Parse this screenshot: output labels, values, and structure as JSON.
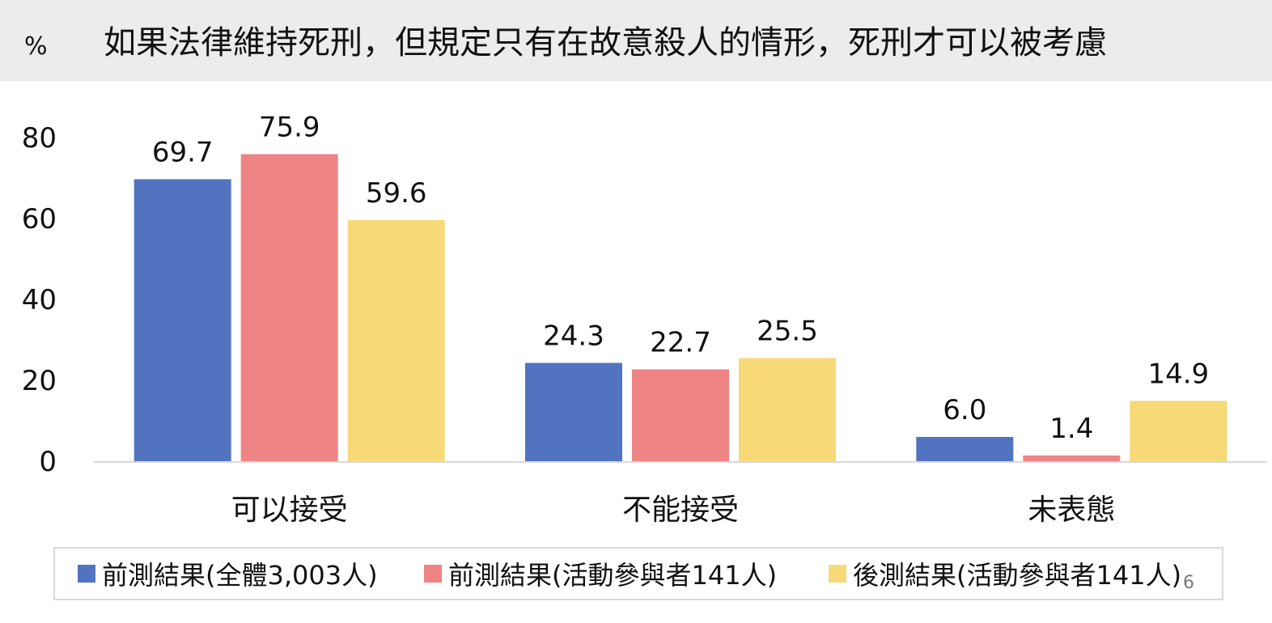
{
  "header": {
    "unit": "%",
    "title": "如果法律維持死刑，但規定只有在故意殺人的情形，死刑才可以被考慮"
  },
  "page_number": "6",
  "chart_data": {
    "type": "bar",
    "title": "如果法律維持死刑，但規定只有在故意殺人的情形，死刑才可以被考慮",
    "ylabel": "%",
    "ylim": [
      0,
      80
    ],
    "yticks": [
      0,
      20,
      40,
      60,
      80
    ],
    "grid": false,
    "legend_position": "bottom",
    "categories": [
      "可以接受",
      "不能接受",
      "未表態"
    ],
    "series": [
      {
        "name": "前測結果(全體3,003人)",
        "color": "#5274c0",
        "values": [
          69.7,
          24.3,
          6.0
        ],
        "labels": [
          "69.7",
          "24.3",
          "6.0"
        ]
      },
      {
        "name": "前測結果(活動參與者141人)",
        "color": "#ef8484",
        "values": [
          75.9,
          22.7,
          1.4
        ],
        "labels": [
          "75.9",
          "22.7",
          "1.4"
        ]
      },
      {
        "name": "後測結果(活動參與者141人)",
        "color": "#f8d978",
        "values": [
          59.6,
          25.5,
          14.9
        ],
        "labels": [
          "59.6",
          "25.5",
          "14.9"
        ]
      }
    ]
  }
}
